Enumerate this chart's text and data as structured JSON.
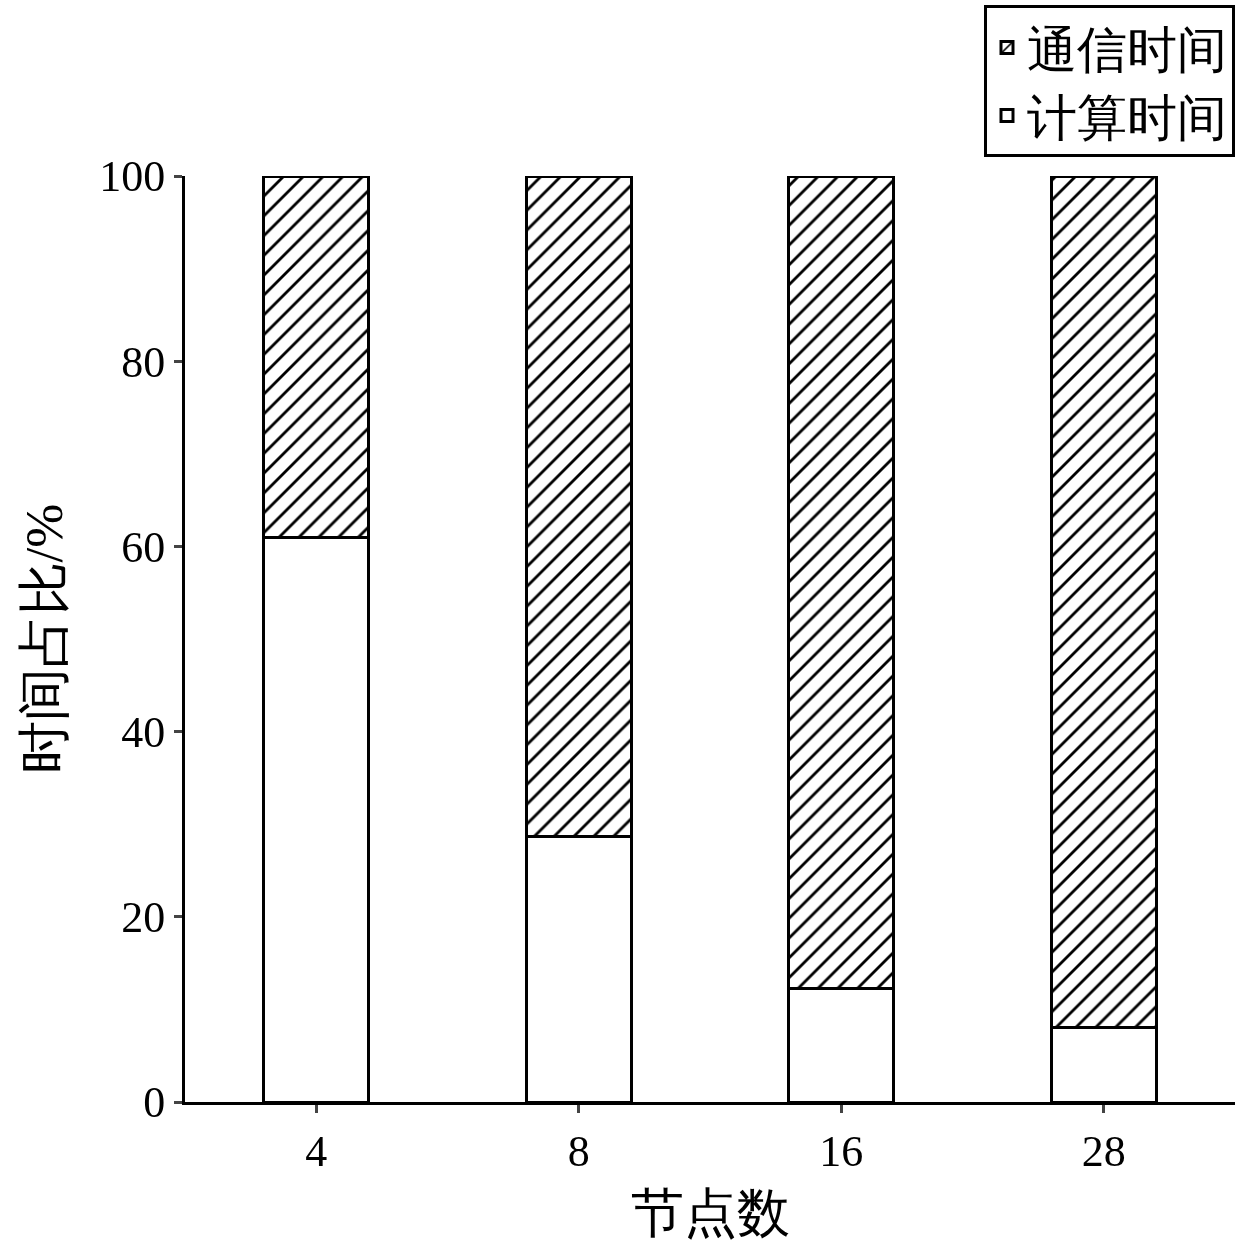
{
  "chart_data": {
    "type": "bar",
    "stacked": true,
    "xlabel": "节点数",
    "ylabel": "时间占比/%",
    "categories": [
      "4",
      "8",
      "16",
      "28"
    ],
    "series": [
      {
        "name": "计算时间",
        "color": "#ffffff",
        "values": [
          61,
          28.7,
          12.3,
          8
        ]
      },
      {
        "name": "通信时间",
        "color": "#000000",
        "values": [
          39,
          71.3,
          87.7,
          92
        ]
      }
    ],
    "ylim": [
      0,
      100
    ],
    "yticks": [
      0,
      20,
      40,
      60,
      80,
      100
    ],
    "legend": "top right"
  }
}
